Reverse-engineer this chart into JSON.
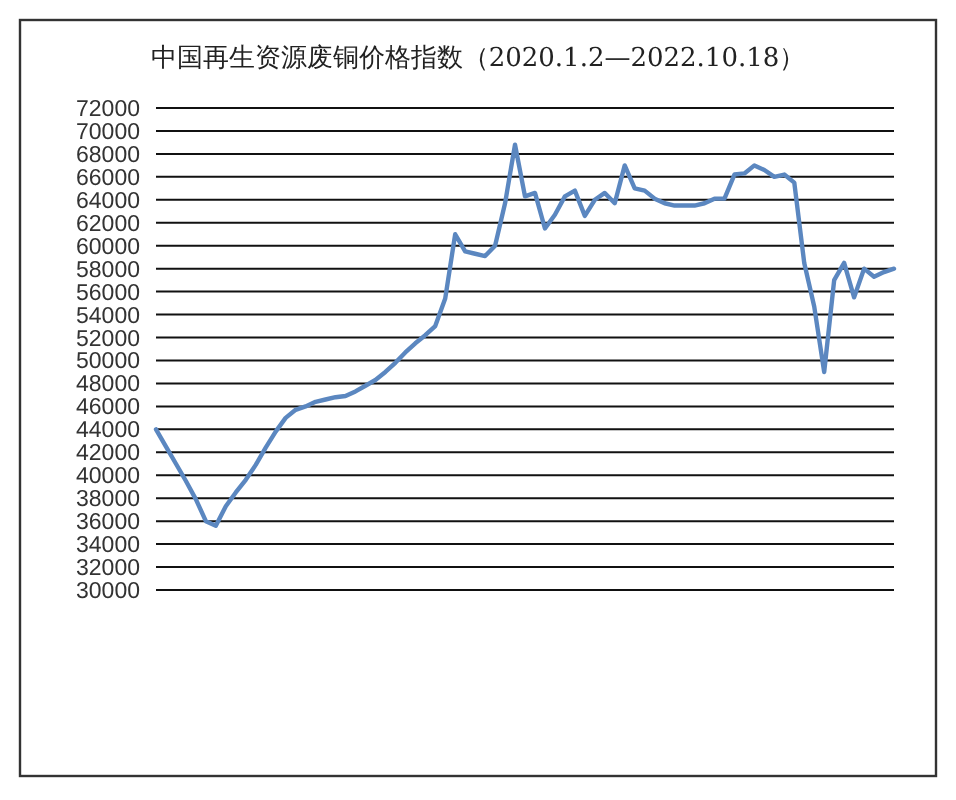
{
  "chart_data": {
    "type": "line",
    "title": "中国再生资源废铜价格指数（2020.1.2—2022.10.18）",
    "categories": [
      null,
      null,
      null,
      null,
      null,
      null,
      null,
      null,
      null,
      null,
      null,
      null,
      null,
      null,
      null,
      null,
      null,
      null,
      null,
      null,
      null,
      null,
      null,
      null,
      null,
      null,
      null,
      null,
      null,
      null,
      null,
      null,
      null,
      null,
      null,
      null,
      null,
      null,
      null,
      null,
      null,
      null,
      null,
      null,
      null,
      null,
      null,
      null,
      null,
      null,
      null,
      null,
      null,
      null,
      null,
      null,
      null,
      null,
      null,
      null,
      null,
      null,
      null,
      null,
      null,
      null,
      null,
      null,
      null,
      null,
      null,
      null,
      null,
      null,
      null
    ],
    "series": [
      {
        "color": "#5b87c0",
        "values": [
          44000,
          42500,
          41000,
          39500,
          37900,
          36000,
          35600,
          37300,
          38500,
          39600,
          40900,
          42400,
          43800,
          45000,
          45700,
          46000,
          46400,
          46600,
          46800,
          46900,
          47300,
          47800,
          48300,
          49000,
          49800,
          50700,
          51500,
          52200,
          53000,
          55400,
          61000,
          59500,
          59300,
          59100,
          60000,
          63700,
          68800,
          64300,
          64600,
          61500,
          62700,
          64300,
          64800,
          62600,
          64000,
          64600,
          63700,
          67000,
          65000,
          64800,
          64100,
          63700,
          63500,
          63500,
          63500,
          63700,
          64100,
          64100,
          66200,
          66300,
          67000,
          66600,
          66000,
          66200,
          65500,
          58500,
          54700,
          49000,
          57000,
          58500,
          55500,
          58000,
          57300,
          57700,
          58000
        ]
      }
    ],
    "ylim": [
      30000,
      72000
    ],
    "yticks": [
      30000,
      32000,
      34000,
      36000,
      38000,
      40000,
      42000,
      44000,
      46000,
      48000,
      50000,
      52000,
      54000,
      56000,
      58000,
      60000,
      62000,
      64000,
      66000,
      68000,
      70000,
      72000
    ],
    "grid": "y",
    "marker": "none",
    "line_style": "solid"
  }
}
